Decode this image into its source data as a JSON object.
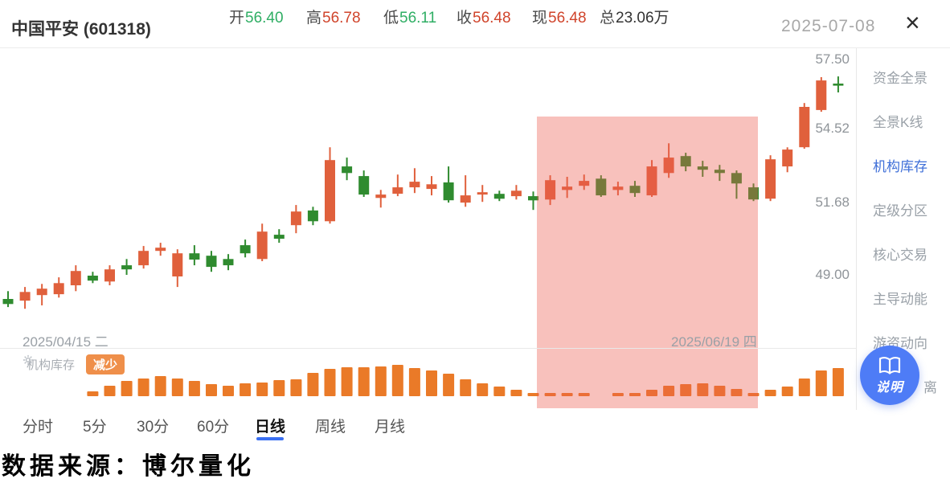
{
  "header": {
    "title": "中国平安 (601318)",
    "stats": [
      {
        "label": "开",
        "value": "56.40",
        "color": "green"
      },
      {
        "label": "高",
        "value": "56.78",
        "color": "red"
      },
      {
        "label": "低",
        "value": "56.11",
        "color": "green"
      },
      {
        "label": "收",
        "value": "56.48",
        "color": "red"
      },
      {
        "label": "现",
        "value": "56.48",
        "color": "red"
      },
      {
        "label": "总",
        "value": "23.06万",
        "color": "dark"
      }
    ],
    "date": "2025-07-08",
    "close_glyph": "×"
  },
  "chart_data": {
    "type": "candlestick",
    "symbol": "中国平安 601318",
    "timeframe": "日线",
    "y_scale": "log",
    "y_max": 57.5,
    "y_min": 49.0,
    "y_axis_labels": [
      "57.50",
      "54.52",
      "51.68",
      "49.00"
    ],
    "x_date_labels": [
      "2025/04/15 二",
      "2025/06/19 四"
    ],
    "candles": [
      [
        48.13,
        48.41,
        47.84,
        47.95,
        "d"
      ],
      [
        48.07,
        48.56,
        47.78,
        48.38,
        "u"
      ],
      [
        48.27,
        48.67,
        47.9,
        48.5,
        "u"
      ],
      [
        48.3,
        48.91,
        48.18,
        48.7,
        "u"
      ],
      [
        48.62,
        49.35,
        48.41,
        49.14,
        "u"
      ],
      [
        48.97,
        49.11,
        48.7,
        48.79,
        "d"
      ],
      [
        48.76,
        49.35,
        48.62,
        49.2,
        "u"
      ],
      [
        49.35,
        49.58,
        49.0,
        49.2,
        "d"
      ],
      [
        49.35,
        50.06,
        49.23,
        49.88,
        "u"
      ],
      [
        49.88,
        50.18,
        49.7,
        50.0,
        "u"
      ],
      [
        48.94,
        49.94,
        48.56,
        49.79,
        "u"
      ],
      [
        49.79,
        50.09,
        49.35,
        49.56,
        "d"
      ],
      [
        49.7,
        49.88,
        49.11,
        49.29,
        "d"
      ],
      [
        49.58,
        49.76,
        49.17,
        49.35,
        "d"
      ],
      [
        50.09,
        50.3,
        49.64,
        49.79,
        "d"
      ],
      [
        49.58,
        50.9,
        49.5,
        50.6,
        "u"
      ],
      [
        50.48,
        50.69,
        50.18,
        50.33,
        "d"
      ],
      [
        50.84,
        51.61,
        50.54,
        51.36,
        "u"
      ],
      [
        51.4,
        51.54,
        50.84,
        50.99,
        "d"
      ],
      [
        50.99,
        53.87,
        50.9,
        53.36,
        "u"
      ],
      [
        53.11,
        53.46,
        52.57,
        52.85,
        "d"
      ],
      [
        52.73,
        52.95,
        51.92,
        52.01,
        "d"
      ],
      [
        51.88,
        52.19,
        51.51,
        52.01,
        "u"
      ],
      [
        52.04,
        52.79,
        51.95,
        52.29,
        "u"
      ],
      [
        52.29,
        53.04,
        52.07,
        52.51,
        "u"
      ],
      [
        52.23,
        52.73,
        51.98,
        52.41,
        "u"
      ],
      [
        52.48,
        53.11,
        51.7,
        51.79,
        "d"
      ],
      [
        51.7,
        52.76,
        51.54,
        51.98,
        "u"
      ],
      [
        52.01,
        52.38,
        51.73,
        52.1,
        "u"
      ],
      [
        52.04,
        52.16,
        51.76,
        51.85,
        "d"
      ],
      [
        51.95,
        52.38,
        51.82,
        52.16,
        "u"
      ],
      [
        51.95,
        52.13,
        51.42,
        51.79,
        "d"
      ],
      [
        51.82,
        52.76,
        51.61,
        52.57,
        "u"
      ],
      [
        52.19,
        52.7,
        51.88,
        52.32,
        "u"
      ],
      [
        52.35,
        52.79,
        52.19,
        52.54,
        "u"
      ],
      [
        52.63,
        52.76,
        51.92,
        51.98,
        "d"
      ],
      [
        52.19,
        52.51,
        51.98,
        52.32,
        "u"
      ],
      [
        52.35,
        52.54,
        51.92,
        52.07,
        "d"
      ],
      [
        51.98,
        53.36,
        51.92,
        53.11,
        "u"
      ],
      [
        52.85,
        54.03,
        52.66,
        53.46,
        "u"
      ],
      [
        53.52,
        53.65,
        52.92,
        53.11,
        "d"
      ],
      [
        53.11,
        53.33,
        52.7,
        52.98,
        "d"
      ],
      [
        52.98,
        53.17,
        52.54,
        52.85,
        "d"
      ],
      [
        52.85,
        52.95,
        51.85,
        52.44,
        "d"
      ],
      [
        52.29,
        52.44,
        51.76,
        51.82,
        "d"
      ],
      [
        51.85,
        53.55,
        51.76,
        53.39,
        "u"
      ],
      [
        53.11,
        53.87,
        52.88,
        53.78,
        "u"
      ],
      [
        53.87,
        55.67,
        53.81,
        55.51,
        "u"
      ],
      [
        55.38,
        56.75,
        55.31,
        56.61,
        "u"
      ],
      [
        56.4,
        56.78,
        56.11,
        56.48,
        "d"
      ]
    ],
    "inventory_values": [
      0,
      0,
      0,
      0,
      0,
      6,
      13,
      19,
      22,
      25,
      22,
      19,
      15,
      13,
      16,
      17,
      20,
      21,
      29,
      34,
      36,
      36,
      37,
      39,
      35,
      32,
      28,
      21,
      16,
      12,
      8,
      4,
      4,
      4,
      4,
      0,
      4,
      4,
      8,
      13,
      15,
      16,
      13,
      9,
      4,
      8,
      12,
      22,
      32,
      35
    ],
    "highlight": {
      "start_index": 32,
      "end_index": 44
    }
  },
  "indicator": {
    "name": "机构库存",
    "badge": "减少"
  },
  "tabs": [
    {
      "label": "分时",
      "active": false
    },
    {
      "label": "5分",
      "active": false
    },
    {
      "label": "30分",
      "active": false
    },
    {
      "label": "60分",
      "active": false
    },
    {
      "label": "日线",
      "active": true
    },
    {
      "label": "周线",
      "active": false
    },
    {
      "label": "月线",
      "active": false
    }
  ],
  "sidebar": {
    "items": [
      {
        "label": "资金全景",
        "active": false
      },
      {
        "label": "全景K线",
        "active": false
      },
      {
        "label": "机构库存",
        "active": true
      },
      {
        "label": "定级分区",
        "active": false
      },
      {
        "label": "核心交易",
        "active": false
      },
      {
        "label": "主导动能",
        "active": false
      },
      {
        "label": "游资动向",
        "active": false
      },
      {
        "label": "离",
        "active": false
      }
    ]
  },
  "help_button": {
    "label": "说明"
  },
  "footer": {
    "text": "数据来源：博尔量化"
  },
  "colors": {
    "green": "#2fae64",
    "red": "#d0442b",
    "dark": "#333333",
    "up": "#e0603c",
    "down": "#2f8b2f",
    "inventory_bar": "#ea7a28",
    "badge_orange": "#ef8f4a",
    "accent_blue": "#3a6ff2",
    "sidebar_active": "#3f6fd8",
    "help_button": "#4e7cf6",
    "highlight_pink": "rgba(237,93,80,0.38)"
  }
}
